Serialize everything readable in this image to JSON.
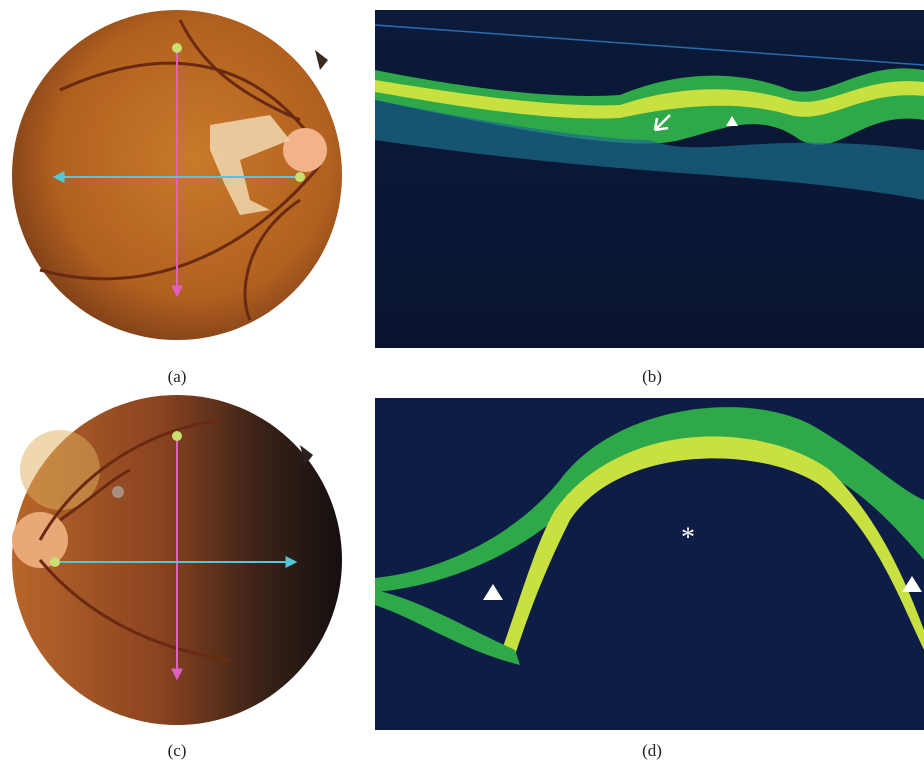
{
  "panels": [
    {
      "label": "(a)"
    },
    {
      "label": "(b)"
    },
    {
      "label": "(c)"
    },
    {
      "label": "(d)",
      "annotation": "*"
    }
  ]
}
